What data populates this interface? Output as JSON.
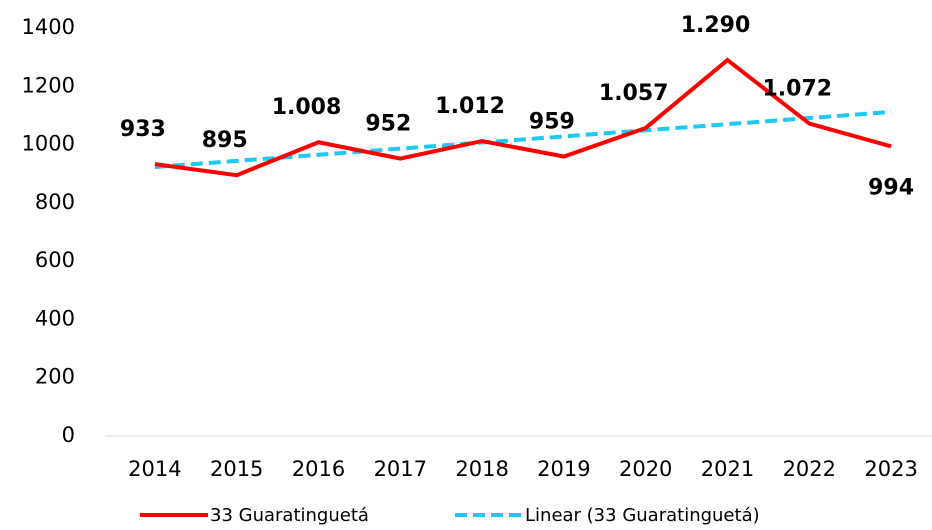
{
  "chart_data": {
    "type": "line",
    "categories": [
      "2014",
      "2015",
      "2016",
      "2017",
      "2018",
      "2019",
      "2020",
      "2021",
      "2022",
      "2023"
    ],
    "series": [
      {
        "name": "33 Guaratinguetá",
        "color": "#ff0000",
        "values": [
          933,
          895,
          1008,
          952,
          1012,
          959,
          1057,
          1290,
          1072,
          994
        ],
        "value_labels": [
          "933",
          "895",
          "1.008",
          "952",
          "1.012",
          "959",
          "1.057",
          "1.290",
          "1.072",
          "994"
        ]
      },
      {
        "name": "Linear (33 Guaratinguetá)",
        "color": "#1ec8f0",
        "dashed": true,
        "values": [
          923,
          944,
          965,
          986,
          1007,
          1028,
          1049,
          1070,
          1091,
          1112
        ]
      }
    ],
    "ylim": [
      0,
      1400
    ],
    "yticks": [
      0,
      200,
      400,
      600,
      800,
      1000,
      1200,
      1400
    ],
    "grid": false,
    "legend": "bottom"
  }
}
